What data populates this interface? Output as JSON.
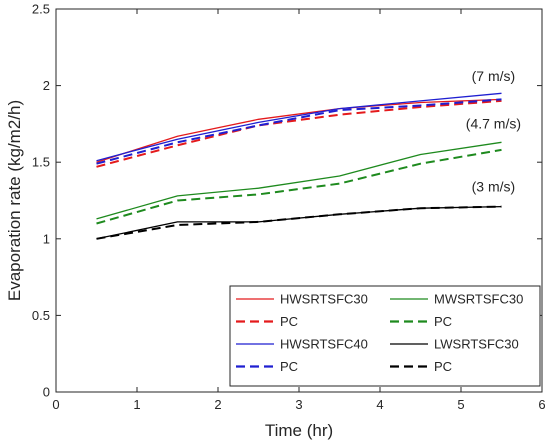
{
  "chart_data": {
    "type": "line",
    "xlabel": "Time (hr)",
    "ylabel": "Evaporation rate (kg/m2/h)",
    "xlim": [
      0,
      6
    ],
    "ylim": [
      0,
      2.5
    ],
    "xticks": [
      "0",
      "1",
      "2",
      "3",
      "4",
      "5",
      "6"
    ],
    "yticks": [
      "0",
      "0.5",
      "1",
      "1.5",
      "2",
      "2.5"
    ],
    "grid": false,
    "legend_position": "bottom-right",
    "series": [
      {
        "name": "HWSRTSFC30",
        "color": "#e41a1c",
        "dash": "solid",
        "x": [
          0.5,
          1.5,
          2.5,
          3.5,
          4.5,
          5.5
        ],
        "values": [
          1.5,
          1.67,
          1.78,
          1.85,
          1.89,
          1.91
        ]
      },
      {
        "name": "PC",
        "color": "#e41a1c",
        "dash": "dashed",
        "x": [
          0.5,
          1.5,
          2.5,
          3.5,
          4.5,
          5.5
        ],
        "values": [
          1.47,
          1.61,
          1.74,
          1.81,
          1.86,
          1.9
        ]
      },
      {
        "name": "HWSRTSFC40",
        "color": "#1f1fd1",
        "dash": "solid",
        "x": [
          0.5,
          1.5,
          2.5,
          3.5,
          4.5,
          5.5
        ],
        "values": [
          1.51,
          1.65,
          1.76,
          1.85,
          1.9,
          1.95
        ]
      },
      {
        "name": "PC",
        "color": "#1f1fd1",
        "dash": "dashed",
        "x": [
          0.5,
          1.5,
          2.5,
          3.5,
          4.5,
          5.5
        ],
        "values": [
          1.49,
          1.63,
          1.74,
          1.84,
          1.87,
          1.91
        ]
      },
      {
        "name": "MWSRTSFC30",
        "color": "#1e8a1e",
        "dash": "solid",
        "x": [
          0.5,
          1.5,
          2.5,
          3.5,
          4.5,
          5.5
        ],
        "values": [
          1.13,
          1.28,
          1.33,
          1.41,
          1.55,
          1.63
        ]
      },
      {
        "name": "PC",
        "color": "#1e8a1e",
        "dash": "dashed",
        "x": [
          0.5,
          1.5,
          2.5,
          3.5,
          4.5,
          5.5
        ],
        "values": [
          1.1,
          1.25,
          1.29,
          1.36,
          1.49,
          1.58
        ]
      },
      {
        "name": "LWSRTSFC30",
        "color": "#000000",
        "dash": "solid",
        "x": [
          0.5,
          1.5,
          2.5,
          3.5,
          4.5,
          5.5
        ],
        "values": [
          1.0,
          1.11,
          1.11,
          1.16,
          1.2,
          1.21
        ]
      },
      {
        "name": "PC",
        "color": "#000000",
        "dash": "dashed",
        "x": [
          0.5,
          1.5,
          2.5,
          3.5,
          4.5,
          5.5
        ],
        "values": [
          1.0,
          1.09,
          1.11,
          1.16,
          1.2,
          1.21
        ]
      }
    ],
    "annotations": [
      {
        "text": "(7 m/s)",
        "x": 5.4,
        "y": 2.03
      },
      {
        "text": "(4.7 m/s)",
        "x": 5.4,
        "y": 1.72
      },
      {
        "text": "(3 m/s)",
        "x": 5.4,
        "y": 1.31
      }
    ],
    "legend": [
      {
        "label": "HWSRTSFC30",
        "series": 0
      },
      {
        "label": "MWSRTSFC30",
        "series": 4
      },
      {
        "label": "PC",
        "series": 1
      },
      {
        "label": "PC",
        "series": 5
      },
      {
        "label": "HWSRTSFC40",
        "series": 2
      },
      {
        "label": "LWSRTSFC30",
        "series": 6
      },
      {
        "label": "PC",
        "series": 3
      },
      {
        "label": "PC",
        "series": 7
      }
    ]
  }
}
